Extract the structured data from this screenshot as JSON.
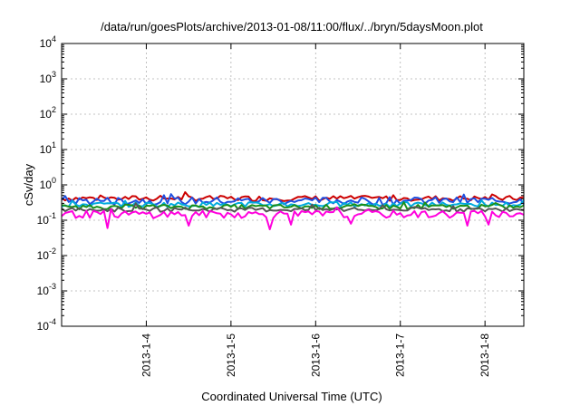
{
  "chart_data": {
    "type": "line",
    "title": "/data/run/goesPlots/archive/2013-01-08/11:00/flux/../bryn/5daysMoon.plot",
    "xlabel": "Coordinated Universal Time (UTC)",
    "ylabel": "cSv/day",
    "y_scale": "log",
    "ylim": [
      0.0001,
      10000
    ],
    "y_ticks": [
      {
        "base": "10",
        "exp": "4"
      },
      {
        "base": "10",
        "exp": "3"
      },
      {
        "base": "10",
        "exp": "2"
      },
      {
        "base": "10",
        "exp": "1"
      },
      {
        "base": "10",
        "exp": "0"
      },
      {
        "base": "10",
        "exp": "-1"
      },
      {
        "base": "10",
        "exp": "-2"
      },
      {
        "base": "10",
        "exp": "-3"
      },
      {
        "base": "10",
        "exp": "-4"
      }
    ],
    "xlim": [
      "2013-01-03T00:00",
      "2013-01-08T11:00"
    ],
    "x_ticks": [
      "2013-1-4",
      "2013-1-5",
      "2013-1-6",
      "2013-1-7",
      "2013-1-8"
    ],
    "grid": true,
    "x_step_hours": 1,
    "series": [
      {
        "color": "#cc0000",
        "base": 0.42,
        "noise": 0.08,
        "dips": []
      },
      {
        "color": "#1f4fe0",
        "base": 0.36,
        "noise": 0.1,
        "dips": []
      },
      {
        "color": "#00aadd",
        "base": 0.28,
        "noise": 0.05,
        "dips": []
      },
      {
        "color": "#1a8f1a",
        "base": 0.24,
        "noise": 0.04,
        "dips": []
      },
      {
        "color": "#555555",
        "base": 0.2,
        "noise": 0.03,
        "dips": []
      },
      {
        "color": "#ff00dd",
        "base": 0.15,
        "noise": 0.04,
        "dips": [
          {
            "t": "2013-01-03T13:00",
            "v": 0.06
          },
          {
            "t": "2013-01-04T12:00",
            "v": 0.07
          },
          {
            "t": "2013-01-05T11:00",
            "v": 0.055
          },
          {
            "t": "2013-01-05T17:00",
            "v": 0.075
          },
          {
            "t": "2013-01-06T10:00",
            "v": 0.08
          },
          {
            "t": "2013-01-07T19:00",
            "v": 0.07
          },
          {
            "t": "2013-01-08T01:00",
            "v": 0.075
          }
        ]
      }
    ]
  }
}
